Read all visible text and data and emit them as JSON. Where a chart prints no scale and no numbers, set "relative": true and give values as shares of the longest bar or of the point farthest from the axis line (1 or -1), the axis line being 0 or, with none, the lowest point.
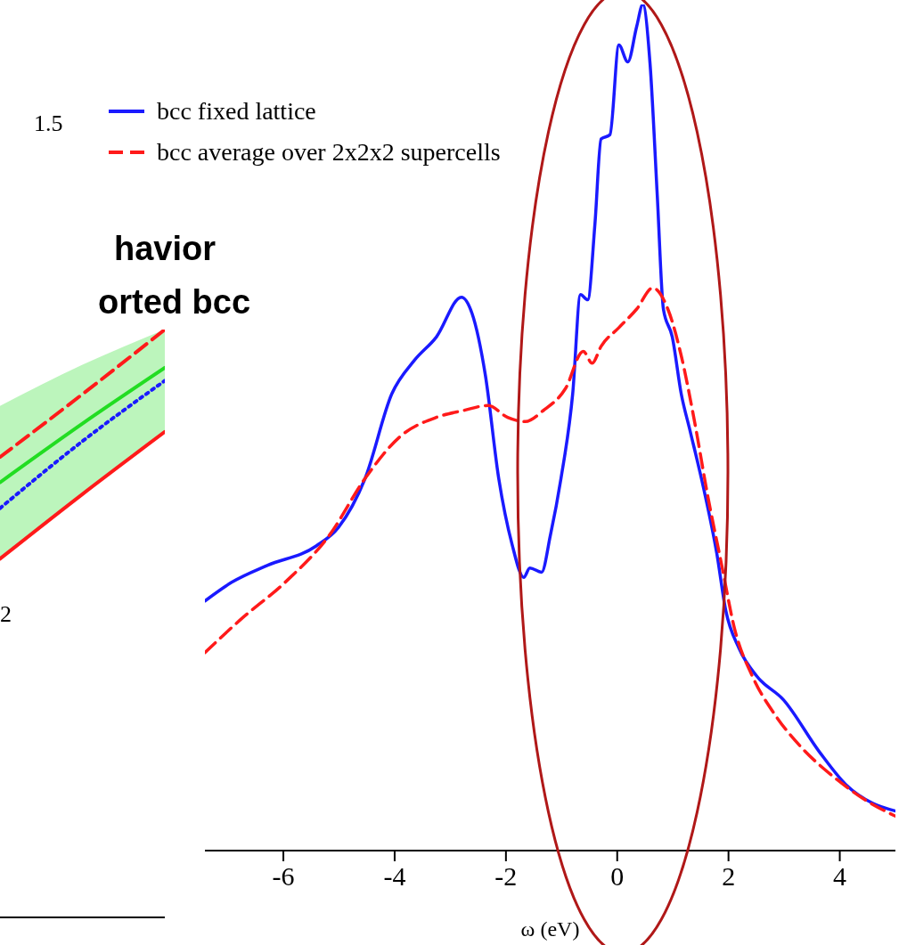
{
  "chart_data": [
    {
      "type": "line",
      "xlabel": "ω (eV)",
      "xlim": [
        -7.41,
        5
      ],
      "xticks": [
        -6,
        -4,
        -2,
        0,
        2,
        4
      ],
      "relative": true,
      "legend": "top left",
      "annotations": [
        "1.5"
      ],
      "series": [
        {
          "name": "bcc fixed lattice",
          "color": "#1a1aff",
          "line_style": "solid",
          "x": [
            -7.41,
            -6.93,
            -6.29,
            -5.41,
            -5.01,
            -4.53,
            -4.05,
            -3.65,
            -3.25,
            -2.8,
            -2.61,
            -2.37,
            -2.13,
            -1.89,
            -1.68,
            -1.57,
            -1.36,
            -1.2,
            -1.01,
            -0.8,
            -0.66,
            -0.53,
            -0.4,
            -0.29,
            -0.13,
            0.03,
            0.19,
            0.35,
            0.46,
            0.59,
            0.72,
            0.83,
            0.99,
            1.15,
            1.31,
            1.55,
            1.79,
            1.95,
            2.19,
            2.51,
            2.99,
            3.63,
            4.11,
            4.59,
            4.99
          ],
          "values": [
            0.295,
            0.317,
            0.337,
            0.36,
            0.382,
            0.44,
            0.54,
            0.579,
            0.607,
            0.654,
            0.635,
            0.562,
            0.44,
            0.362,
            0.323,
            0.334,
            0.329,
            0.373,
            0.44,
            0.54,
            0.657,
            0.651,
            0.741,
            0.841,
            0.846,
            0.952,
            0.932,
            0.974,
            1,
            0.93,
            0.774,
            0.64,
            0.607,
            0.54,
            0.496,
            0.429,
            0.351,
            0.284,
            0.239,
            0.206,
            0.178,
            0.117,
            0.078,
            0.056,
            0.047
          ]
        },
        {
          "name": "bcc average over 2x2x2 supercells",
          "color": "#ff1a1a",
          "line_style": "dashed",
          "x": [
            -7.41,
            -6.77,
            -5.97,
            -5.17,
            -4.53,
            -3.89,
            -3.25,
            -2.77,
            -2.32,
            -1.97,
            -1.65,
            -1.33,
            -0.93,
            -0.61,
            -0.45,
            -0.29,
            0.03,
            0.35,
            0.64,
            0.91,
            1.15,
            1.39,
            1.63,
            1.87,
            2.11,
            2.43,
            2.83,
            3.31,
            3.95,
            4.43,
            4.99
          ],
          "values": [
            0.234,
            0.273,
            0.317,
            0.373,
            0.44,
            0.49,
            0.512,
            0.52,
            0.526,
            0.512,
            0.507,
            0.52,
            0.546,
            0.59,
            0.576,
            0.596,
            0.618,
            0.64,
            0.665,
            0.64,
            0.585,
            0.507,
            0.418,
            0.34,
            0.262,
            0.206,
            0.161,
            0.122,
            0.084,
            0.061,
            0.041
          ]
        }
      ]
    },
    {
      "type": "line",
      "categories": [
        null,
        null,
        null
      ],
      "relative": true,
      "tick_labels": false,
      "annotations": [
        "havior",
        "orted bcc",
        "2"
      ],
      "series": [
        {
          "color": "#22dd22",
          "line_style": "solid",
          "values": [
            0.74,
            0.84,
            0.935
          ],
          "lower": [
            0.61,
            0.72,
            0.826
          ],
          "upper": [
            0.87,
            0.94,
            1
          ]
        },
        {
          "color": "#ff1a1a",
          "line_style": "dashed",
          "values": [
            0.783,
            0.89,
            1
          ]
        },
        {
          "color": "#1a1aff",
          "line_style": "dotted",
          "values": [
            0.696,
            0.81,
            0.913
          ]
        },
        {
          "color": "#ff1a1a",
          "line_style": "solid",
          "values": [
            0.61,
            0.72,
            0.826
          ]
        }
      ]
    }
  ]
}
